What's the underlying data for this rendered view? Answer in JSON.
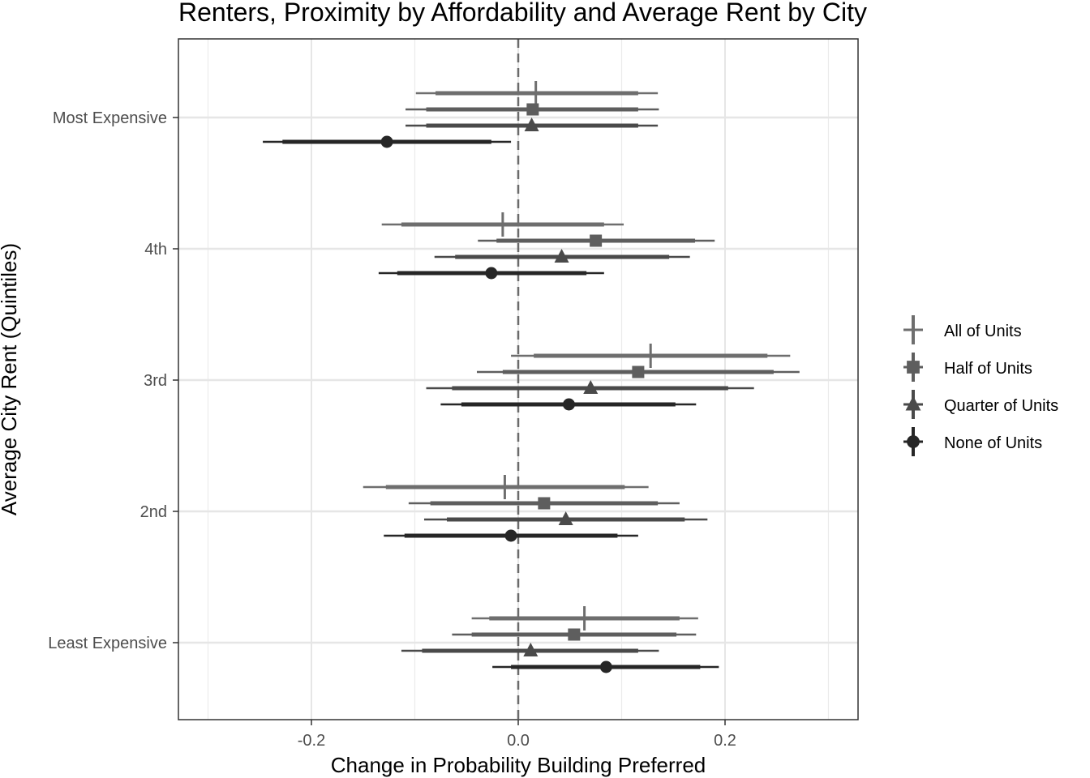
{
  "chart_data": {
    "type": "scatter",
    "title": "Renters, Proximity by Affordability and Average Rent by City",
    "xlabel": "Change in Probability Building Preferred",
    "ylabel": "Average City Rent (Quintiles)",
    "xlim": [
      -0.33,
      0.33
    ],
    "x_ticks": [
      {
        "value": -0.2,
        "label": "-0.2"
      },
      {
        "value": 0.0,
        "label": "0.0"
      },
      {
        "value": 0.2,
        "label": "0.2"
      }
    ],
    "x_minor_gridlines": [
      -0.3,
      -0.1,
      0.1,
      0.3
    ],
    "reference_line": 0,
    "categories": [
      "Most Expensive",
      "4th",
      "3rd",
      "2nd",
      "Least Expensive"
    ],
    "grid": true,
    "legend_position": "right",
    "series": [
      {
        "name": "All of Units",
        "shape": "cross",
        "color": "#6e6e6e",
        "points": [
          {
            "category": "Most Expensive",
            "estimate": 0.017,
            "ci90": [
              -0.08,
              0.116
            ],
            "ci95": [
              -0.099,
              0.135
            ]
          },
          {
            "category": "4th",
            "estimate": -0.015,
            "ci90": [
              -0.113,
              0.083
            ],
            "ci95": [
              -0.132,
              0.102
            ]
          },
          {
            "category": "3rd",
            "estimate": 0.128,
            "ci90": [
              0.015,
              0.241
            ],
            "ci95": [
              -0.007,
              0.263
            ]
          },
          {
            "category": "2nd",
            "estimate": -0.013,
            "ci90": [
              -0.128,
              0.103
            ],
            "ci95": [
              -0.15,
              0.126
            ]
          },
          {
            "category": "Least Expensive",
            "estimate": 0.064,
            "ci90": [
              -0.028,
              0.156
            ],
            "ci95": [
              -0.045,
              0.174
            ]
          }
        ]
      },
      {
        "name": "Half of Units",
        "shape": "square",
        "color": "#5e5e5e",
        "points": [
          {
            "category": "Most Expensive",
            "estimate": 0.014,
            "ci90": [
              -0.089,
              0.116
            ],
            "ci95": [
              -0.109,
              0.136
            ]
          },
          {
            "category": "4th",
            "estimate": 0.075,
            "ci90": [
              -0.021,
              0.171
            ],
            "ci95": [
              -0.039,
              0.19
            ]
          },
          {
            "category": "3rd",
            "estimate": 0.116,
            "ci90": [
              -0.015,
              0.247
            ],
            "ci95": [
              -0.04,
              0.272
            ]
          },
          {
            "category": "2nd",
            "estimate": 0.025,
            "ci90": [
              -0.085,
              0.135
            ],
            "ci95": [
              -0.106,
              0.156
            ]
          },
          {
            "category": "Least Expensive",
            "estimate": 0.054,
            "ci90": [
              -0.045,
              0.153
            ],
            "ci95": [
              -0.064,
              0.172
            ]
          }
        ]
      },
      {
        "name": "Quarter of Units",
        "shape": "triangle",
        "color": "#4a4a4a",
        "points": [
          {
            "category": "Most Expensive",
            "estimate": 0.013,
            "ci90": [
              -0.089,
              0.116
            ],
            "ci95": [
              -0.109,
              0.135
            ]
          },
          {
            "category": "4th",
            "estimate": 0.042,
            "ci90": [
              -0.061,
              0.146
            ],
            "ci95": [
              -0.081,
              0.166
            ]
          },
          {
            "category": "3rd",
            "estimate": 0.07,
            "ci90": [
              -0.064,
              0.203
            ],
            "ci95": [
              -0.089,
              0.228
            ]
          },
          {
            "category": "2nd",
            "estimate": 0.046,
            "ci90": [
              -0.069,
              0.161
            ],
            "ci95": [
              -0.091,
              0.183
            ]
          },
          {
            "category": "Least Expensive",
            "estimate": 0.012,
            "ci90": [
              -0.093,
              0.116
            ],
            "ci95": [
              -0.113,
              0.136
            ]
          }
        ]
      },
      {
        "name": "None of Units",
        "shape": "circle",
        "color": "#262626",
        "points": [
          {
            "category": "Most Expensive",
            "estimate": -0.127,
            "ci90": [
              -0.228,
              -0.026
            ],
            "ci95": [
              -0.247,
              -0.007
            ]
          },
          {
            "category": "4th",
            "estimate": -0.026,
            "ci90": [
              -0.117,
              0.066
            ],
            "ci95": [
              -0.135,
              0.083
            ]
          },
          {
            "category": "3rd",
            "estimate": 0.049,
            "ci90": [
              -0.055,
              0.152
            ],
            "ci95": [
              -0.075,
              0.172
            ]
          },
          {
            "category": "2nd",
            "estimate": -0.007,
            "ci90": [
              -0.11,
              0.096
            ],
            "ci95": [
              -0.13,
              0.116
            ]
          },
          {
            "category": "Least Expensive",
            "estimate": 0.085,
            "ci90": [
              -0.007,
              0.176
            ],
            "ci95": [
              -0.025,
              0.194
            ]
          }
        ]
      }
    ]
  }
}
